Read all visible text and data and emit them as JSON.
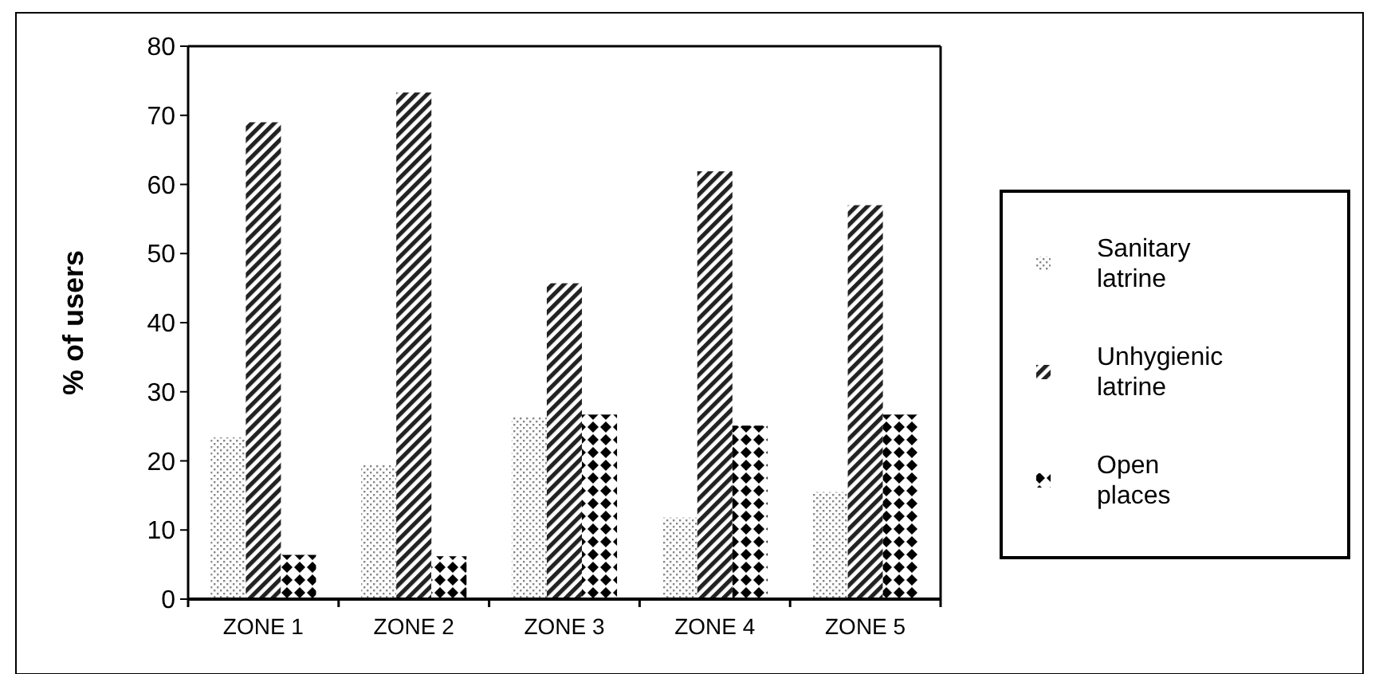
{
  "chart_data": {
    "type": "bar",
    "ylabel": "% of users",
    "categories": [
      "ZONE 1",
      "ZONE 2",
      "ZONE 3",
      "ZONE 4",
      "ZONE 5"
    ],
    "series": [
      {
        "name": "Sanitary latrine",
        "color": "#888888",
        "values": [
          23.4,
          19.4,
          26.4,
          11.8,
          15.5
        ]
      },
      {
        "name": "Unhygienic latrine",
        "color": "#222222",
        "values": [
          69.0,
          73.3,
          45.7,
          61.9,
          57.0
        ]
      },
      {
        "name": "Open places",
        "color": "#000000",
        "values": [
          6.4,
          6.2,
          26.7,
          25.1,
          26.7
        ]
      }
    ],
    "ylim": [
      0,
      80
    ],
    "yticks": [
      0,
      10,
      20,
      30,
      40,
      50,
      60,
      70,
      80
    ],
    "grid": false,
    "legend": "right"
  }
}
